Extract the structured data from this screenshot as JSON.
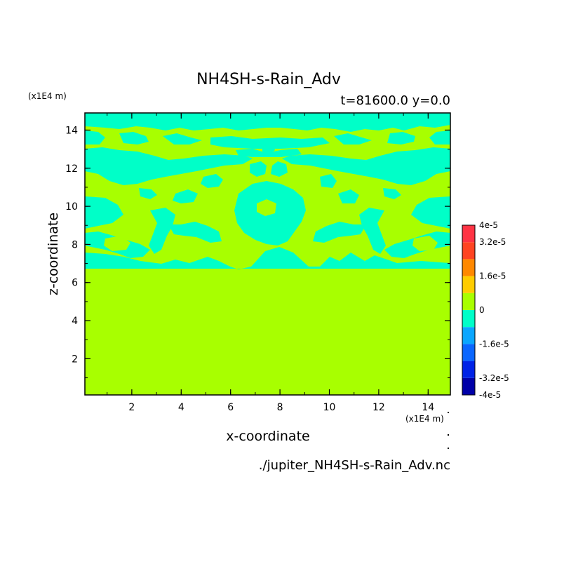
{
  "chart_data": {
    "type": "heatmap",
    "title": "NH4SH-s-Rain_Adv",
    "subtitle": "t=81600.0 y=0.0",
    "xlabel": "x-coordinate",
    "ylabel": "z-coordinate",
    "x_units": "(x1E4 m)",
    "y_units": "(x1E4 m)",
    "xlim": [
      0.1,
      14.9
    ],
    "ylim": [
      0.1,
      14.9
    ],
    "x_ticks": [
      2,
      4,
      6,
      8,
      10,
      12,
      14
    ],
    "y_ticks": [
      2,
      4,
      6,
      8,
      10,
      12,
      14
    ],
    "colorbar": {
      "levels": [
        -4e-05,
        -3.2e-05,
        -2.4e-05,
        -1.6e-05,
        -8e-06,
        0,
        8e-06,
        1.6e-05,
        2.4e-05,
        3.2e-05,
        4e-05
      ],
      "colors": [
        "#0000a8",
        "#0022e6",
        "#0a66ff",
        "#0aa6ff",
        "#00ffc8",
        "#a8ff00",
        "#ffcc00",
        "#ff8800",
        "#ff4422",
        "#ff3344"
      ],
      "tick_labels": [
        "4e-5",
        "3.2e-5",
        "1.6e-5",
        "0",
        "-1.6e-5",
        "-3.2e-5",
        "-4e-5"
      ],
      "tick_values": [
        4e-05,
        3.2e-05,
        1.6e-05,
        0,
        -1.6e-05,
        -3.2e-05,
        -4e-05
      ]
    },
    "field_summary": {
      "background_value_band": [
        0,
        8e-06
      ],
      "negative_patch_band": [
        -8e-06,
        0
      ],
      "negative_patches_z_range": [
        6.6,
        14.9
      ]
    }
  },
  "source_file": "./jupiter_NH4SH-s-Rain_Adv.nc",
  "colors": {
    "positive_band": "#a8ff00",
    "negative_band": "#00ffc8"
  }
}
